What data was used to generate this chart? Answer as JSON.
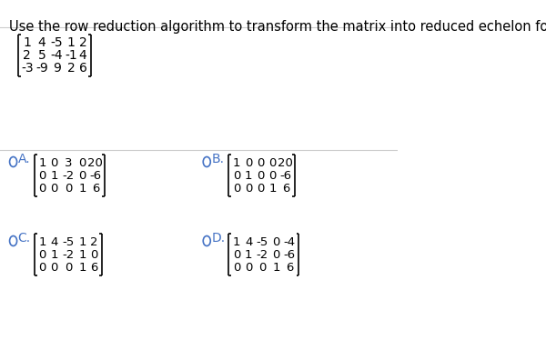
{
  "title": "Use the row reduction algorithm to transform the matrix into reduced echelon form.",
  "title_fontsize": 10.5,
  "bg_color": "#ffffff",
  "text_color": "#000000",
  "option_color": "#4472C4",
  "matrix_color": "#000000",
  "question_matrix": [
    [
      "1",
      "4",
      "-5",
      "1",
      "2"
    ],
    [
      "2",
      "5",
      "-4",
      "-1",
      "4"
    ],
    [
      "-3",
      "-9",
      "9",
      "2",
      "6"
    ]
  ],
  "option_A_label": "A.",
  "option_A_matrix": [
    [
      "1",
      "0",
      "3",
      "0",
      "20"
    ],
    [
      "0",
      "1",
      "-2",
      "0",
      "-6"
    ],
    [
      "0",
      "0",
      "0",
      "1",
      "6"
    ]
  ],
  "option_B_label": "B.",
  "option_B_matrix": [
    [
      "1",
      "0",
      "0",
      "0",
      "20"
    ],
    [
      "0",
      "1",
      "0",
      "0",
      "-6"
    ],
    [
      "0",
      "0",
      "0",
      "1",
      "6"
    ]
  ],
  "option_C_label": "C.",
  "option_C_matrix": [
    [
      "1",
      "4",
      "-5",
      "1",
      "2"
    ],
    [
      "0",
      "1",
      "-2",
      "1",
      "0"
    ],
    [
      "0",
      "0",
      "0",
      "1",
      "6"
    ]
  ],
  "option_D_label": "D.",
  "option_D_matrix": [
    [
      "1",
      "4",
      "-5",
      "0",
      "-4"
    ],
    [
      "0",
      "1",
      "-2",
      "0",
      "-6"
    ],
    [
      "0",
      "0",
      "0",
      "1",
      "6"
    ]
  ]
}
